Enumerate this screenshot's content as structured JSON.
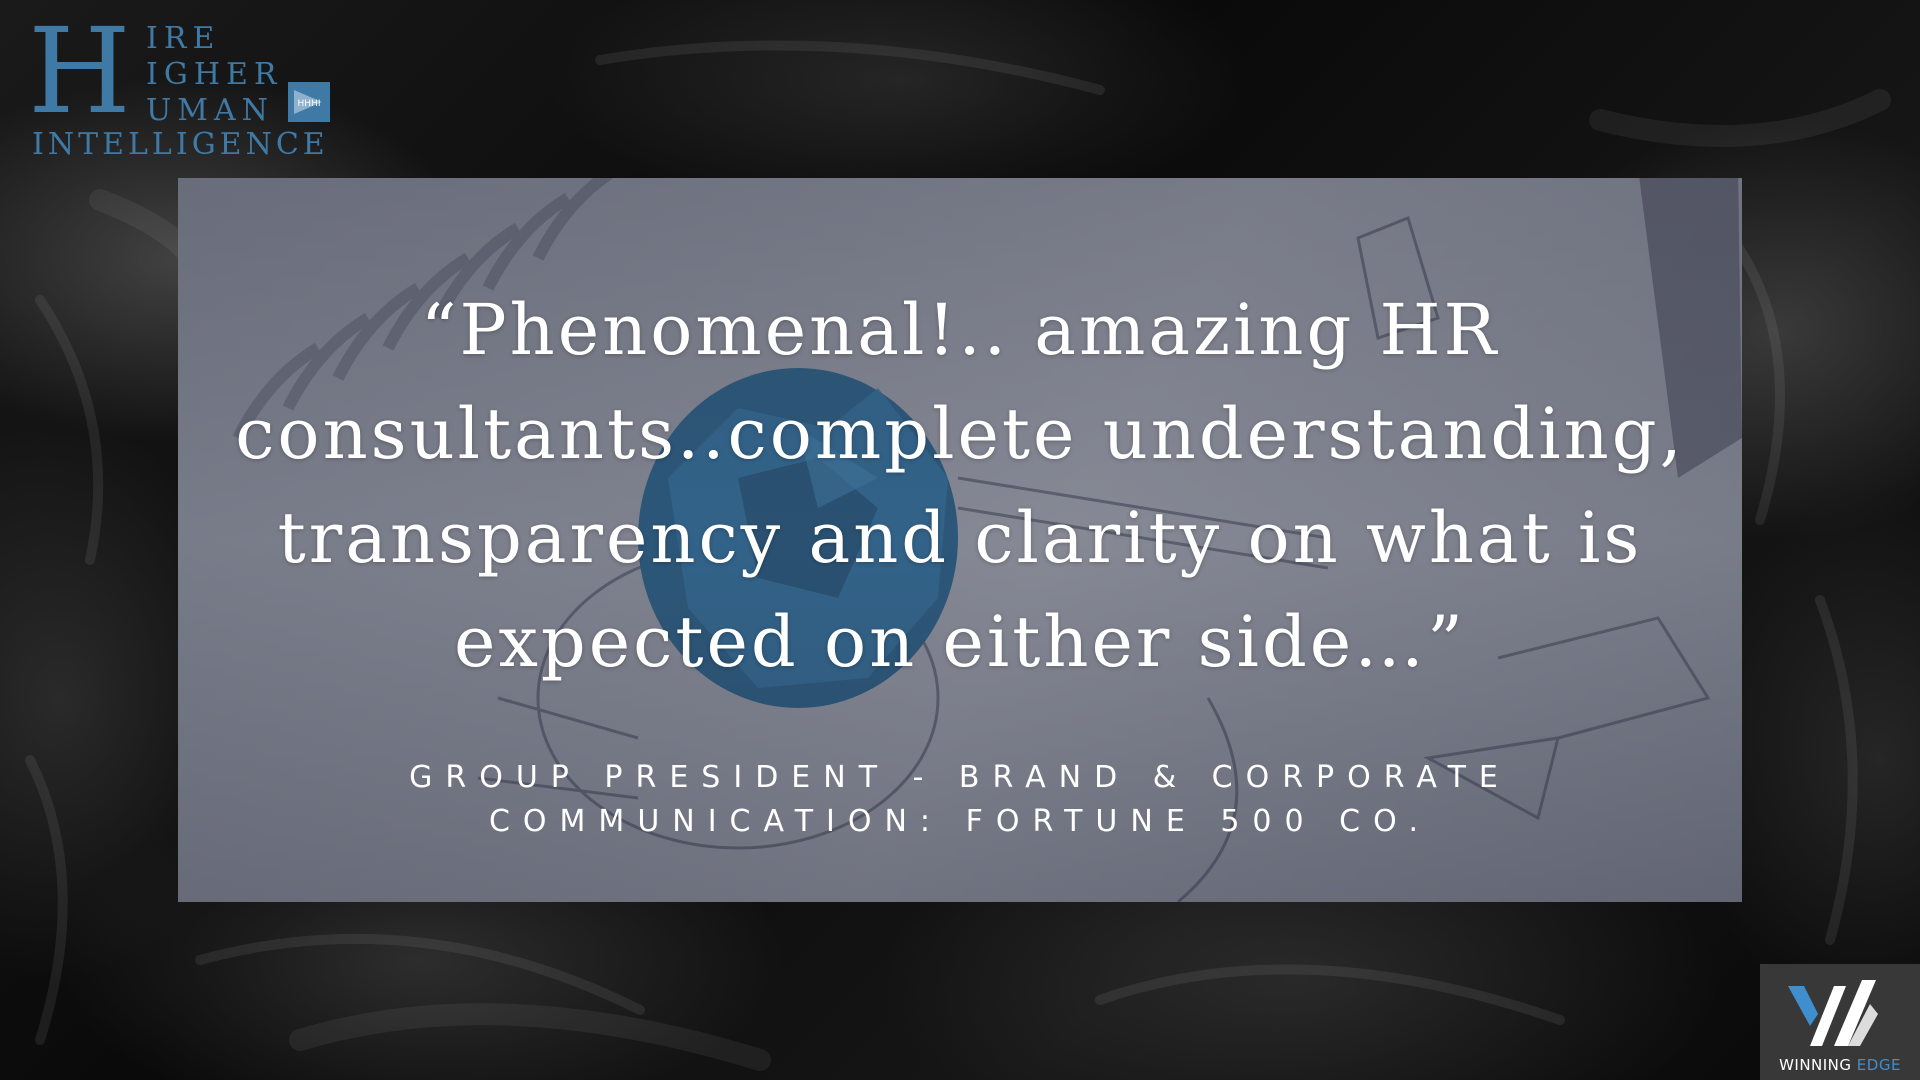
{
  "logo": {
    "letter": "H",
    "line1": "IRE",
    "line2": "IGHER",
    "line3": "UMAN",
    "line4": "INTELLIGENCE",
    "badge_text": "HHHI",
    "color": "#3f79a5"
  },
  "testimonial": {
    "quote": "“Phenomenal!.. amazing HR consultants..complete understanding, transparency and clarity on what is expected on either side…”",
    "attribution_line1": "GROUP PRESIDENT - BRAND & CORPORATE",
    "attribution_line2": "COMMUNICATION: FORTUNE 500 CO."
  },
  "brand_badge": {
    "label_part1": "WINNING ",
    "label_part2": "EDGE",
    "accent": "#3f8fcf"
  },
  "colors": {
    "logo_blue": "#3f79a5",
    "text": "#ffffff",
    "badge_bg": "#383838"
  }
}
